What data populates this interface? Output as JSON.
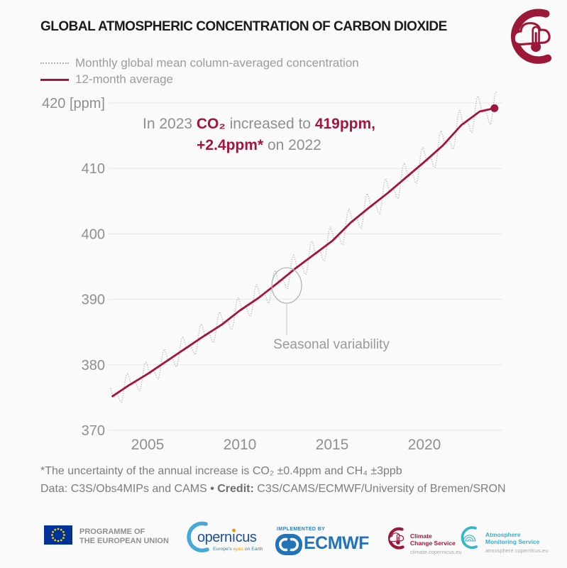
{
  "page": {
    "background": "#fafafa",
    "accent_crimson": "#a3143f"
  },
  "header": {
    "title": "GLOBAL ATMOSPHERIC CONCENTRATION OF CARBON DIOXIDE"
  },
  "legend": {
    "monthly_label": "Monthly global mean column-averaged concentration",
    "average_label": "12-month average"
  },
  "annotation": {
    "p1": "In 2023 ",
    "p2": "CO₂",
    "p3": " increased to ",
    "p4": "419ppm,",
    "p5": "+2.4ppm*",
    "p6": " on 2022"
  },
  "seasonal_annotation": {
    "label": "Seasonal variability"
  },
  "footnotes": {
    "uncertainty": "*The uncertainty of the annual increase is CO₂ ±0.4ppm and CH₄ ±3ppb",
    "credit_pre": "Data: C3S/Obs4MIPs and CAMS ",
    "credit_sep": "• Credit:",
    "credit_post": " C3S/CAMS/ECMWF/University of Bremen/SRON"
  },
  "chart_data": {
    "type": "line",
    "title": "Global atmospheric concentration of carbon dioxide",
    "ylabel": "ppm",
    "y_ticks": [
      370,
      380,
      390,
      400,
      410,
      420
    ],
    "y_top_tick_label": "420 [ppm]",
    "x_ticks": [
      2005,
      2010,
      2015,
      2020
    ],
    "xlim": [
      2002.9,
      2024.3
    ],
    "ylim": [
      368,
      421.5
    ],
    "grid": "horizontal",
    "legend_position": "top-left",
    "series": [
      {
        "name": "12-month average",
        "style": "solid",
        "color": "#a3143f",
        "x": [
          2003.1,
          2004,
          2005,
          2006,
          2007,
          2008,
          2009,
          2010,
          2011,
          2012,
          2013,
          2014,
          2015,
          2016,
          2017,
          2018,
          2019,
          2020,
          2021,
          2022,
          2023,
          2023.8
        ],
        "values": [
          375.2,
          376.9,
          378.6,
          380.5,
          382.4,
          384.3,
          386.1,
          388.3,
          390.2,
          392.4,
          394.7,
          396.8,
          398.9,
          401.7,
          404.0,
          406.2,
          408.6,
          411.0,
          413.5,
          416.6,
          418.7,
          419.2
        ]
      },
      {
        "name": "Monthly global mean column-averaged concentration",
        "style": "dotted",
        "color": "#bfbfc2",
        "derived_from": "12-month average plus seasonal cycle",
        "seasonal_amplitude_ppm": 2.2,
        "cadence": "monthly",
        "start": 2003.0,
        "end": 2023.95
      }
    ],
    "end_point": {
      "x": 2023.8,
      "value": 419.2
    }
  },
  "footer_logos": {
    "eu": {
      "label_line1": "PROGRAMME OF",
      "label_line2": "THE EUROPEAN UNION"
    },
    "copernicus": {
      "wordmark": "opernicus",
      "tagline_pre": "Europe's ",
      "tagline_highlight": "eyes",
      "tagline_post": " on Earth"
    },
    "ecmwf": {
      "implemented_by": "IMPLEMENTED BY",
      "name": "ECMWF"
    },
    "c3s": {
      "line1": "Climate",
      "line2": "Change Service",
      "url": "climate.copernicus.eu"
    },
    "cams": {
      "line1": "Atmosphere",
      "line2": "Monitoring Service",
      "url": "atmosphere.copernicus.eu"
    }
  }
}
